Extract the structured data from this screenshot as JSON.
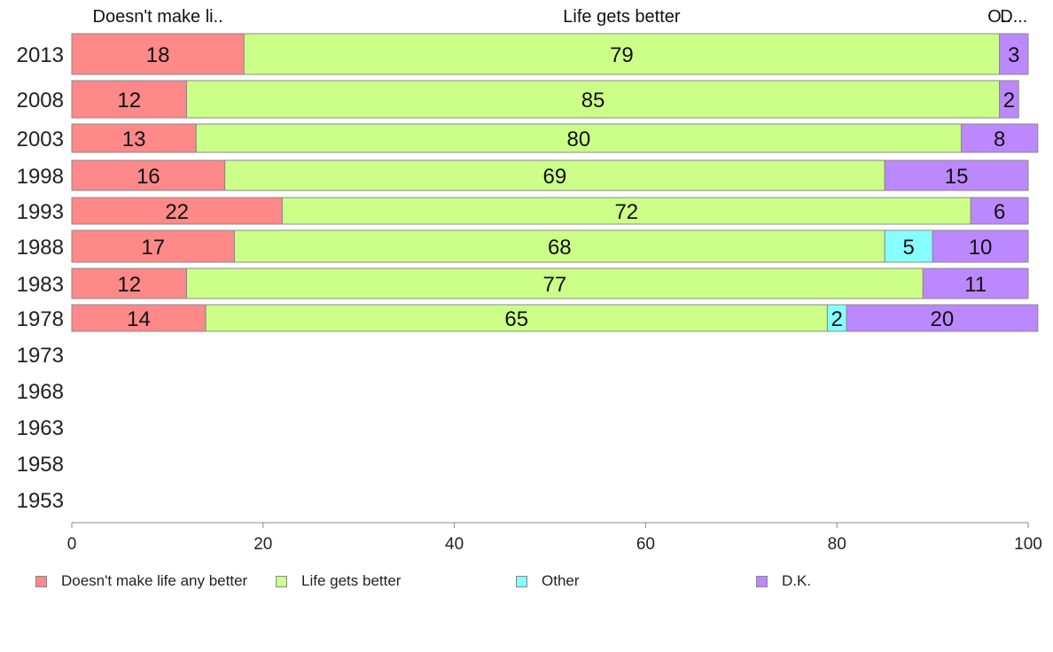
{
  "chart_data": {
    "type": "bar",
    "orientation": "horizontal",
    "stacked": true,
    "categories": [
      "2013",
      "2008",
      "2003",
      "1998",
      "1993",
      "1988",
      "1983",
      "1978",
      "1973",
      "1968",
      "1963",
      "1958",
      "1953"
    ],
    "series": [
      {
        "name": "Doesn't make life any better",
        "short_label": "Doesn't make li..",
        "color": "#ff8888",
        "values": [
          18,
          12,
          13,
          16,
          22,
          17,
          12,
          14,
          null,
          null,
          null,
          null,
          null
        ]
      },
      {
        "name": "Life gets better",
        "short_label": "Life gets better",
        "color": "#ccff88",
        "values": [
          79,
          85,
          80,
          69,
          72,
          68,
          77,
          65,
          null,
          null,
          null,
          null,
          null
        ]
      },
      {
        "name": "Other",
        "short_label": "O..",
        "color": "#88ffff",
        "values": [
          0,
          0,
          0,
          0,
          0,
          5,
          0,
          2,
          null,
          null,
          null,
          null,
          null
        ]
      },
      {
        "name": "D.K.",
        "short_label": "D...",
        "color": "#bb88ff",
        "values": [
          3,
          2,
          8,
          15,
          6,
          10,
          11,
          20,
          null,
          null,
          null,
          null,
          null
        ]
      }
    ],
    "xlim": [
      0,
      100
    ],
    "xticks": [
      "0",
      "20",
      "40",
      "60",
      "80",
      "100"
    ],
    "grid": false,
    "legend_position": "bottom"
  }
}
